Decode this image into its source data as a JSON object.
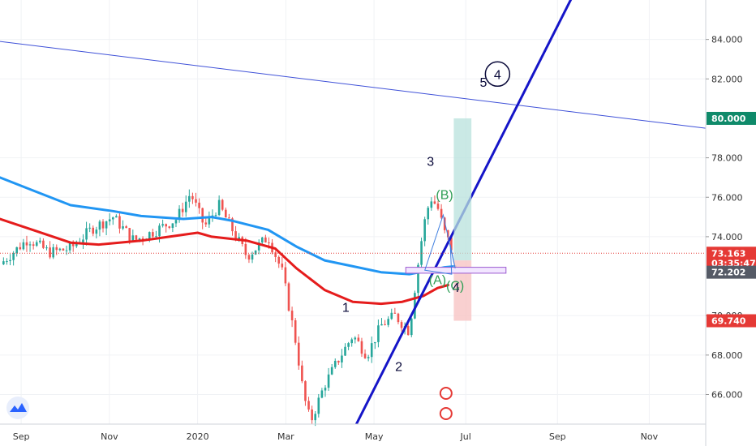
{
  "chart_data": {
    "type": "candlestick",
    "y_ticks": [
      "84.000",
      "82.000",
      "78.000",
      "76.000",
      "74.000",
      "70.000",
      "68.000",
      "66.000"
    ],
    "x_ticks": [
      "Sep",
      "Nov",
      "2020",
      "Mar",
      "May",
      "Jul",
      "Sep",
      "Nov"
    ],
    "price_tags": [
      {
        "label": "80.000",
        "color": "#0f8a6a",
        "value": 80.0
      },
      {
        "label": "73.163",
        "color": "#e53935",
        "value": 73.163
      },
      {
        "label": "03:35:47",
        "color": "#e53935",
        "value": 72.65
      },
      {
        "label": "72.202",
        "color": "#555a66",
        "value": 72.202
      },
      {
        "label": "69.740",
        "color": "#e53935",
        "value": 69.74
      }
    ],
    "ylim": [
      64.5,
      86.0
    ],
    "wave_labels": [
      {
        "text": "1",
        "style": "dark",
        "t": 0.49,
        "y": 70.2
      },
      {
        "text": "2",
        "style": "dark",
        "t": 0.565,
        "y": 67.2
      },
      {
        "text": "3",
        "style": "dark",
        "t": 0.61,
        "y": 77.6
      },
      {
        "text": "4",
        "style": "dark",
        "t": 0.646,
        "y": 71.2
      },
      {
        "text": "5",
        "style": "dark",
        "t": 0.685,
        "y": 81.6
      },
      {
        "text": "(B)",
        "style": "green",
        "t": 0.63,
        "y": 75.9
      },
      {
        "text": "(A)",
        "style": "green",
        "t": 0.62,
        "y": 71.6
      },
      {
        "text": "(C)",
        "style": "green",
        "t": 0.645,
        "y": 71.3
      }
    ],
    "circle_label": {
      "text": "4",
      "t": 0.705,
      "y": 82.0
    },
    "series": [
      {
        "name": "MA-slow",
        "color": "#2196f3",
        "points": [
          [
            0,
            77.0
          ],
          [
            0.05,
            76.3
          ],
          [
            0.1,
            75.6
          ],
          [
            0.16,
            75.3
          ],
          [
            0.2,
            75.05
          ],
          [
            0.26,
            74.9
          ],
          [
            0.3,
            75.0
          ],
          [
            0.33,
            74.8
          ],
          [
            0.38,
            74.35
          ],
          [
            0.42,
            73.5
          ],
          [
            0.46,
            72.8
          ],
          [
            0.5,
            72.5
          ],
          [
            0.54,
            72.2
          ],
          [
            0.58,
            72.1
          ],
          [
            0.61,
            72.3
          ],
          [
            0.63,
            72.45
          ],
          [
            0.645,
            72.5
          ]
        ]
      },
      {
        "name": "MA-fast",
        "color": "#e51c1c",
        "points": [
          [
            0,
            74.9
          ],
          [
            0.05,
            74.3
          ],
          [
            0.1,
            73.7
          ],
          [
            0.14,
            73.6
          ],
          [
            0.2,
            73.8
          ],
          [
            0.24,
            74.0
          ],
          [
            0.28,
            74.2
          ],
          [
            0.3,
            74.0
          ],
          [
            0.35,
            73.8
          ],
          [
            0.39,
            73.4
          ],
          [
            0.42,
            72.4
          ],
          [
            0.46,
            71.3
          ],
          [
            0.5,
            70.7
          ],
          [
            0.54,
            70.6
          ],
          [
            0.57,
            70.7
          ],
          [
            0.6,
            71.0
          ],
          [
            0.62,
            71.4
          ],
          [
            0.635,
            71.55
          ]
        ]
      }
    ],
    "candles_seed": 7
  }
}
